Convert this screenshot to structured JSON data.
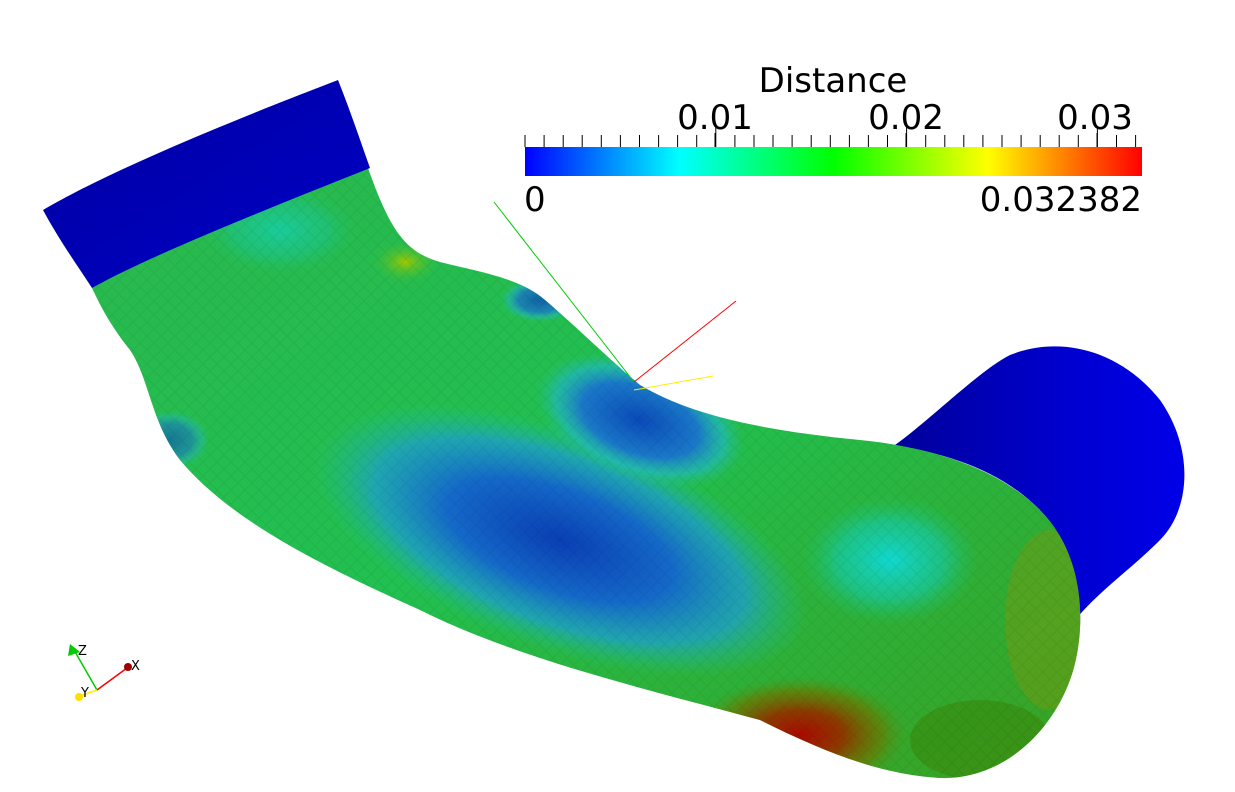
{
  "scalar_bar": {
    "title": "Distance",
    "ticks": [
      "0.01",
      "0.02",
      "0.03"
    ],
    "min_label": "0",
    "max_label": "0.032382",
    "colormap": [
      "#0000ff",
      "#00ffff",
      "#00ff00",
      "#ffff00",
      "#ff0000"
    ]
  },
  "orientation_axes": {
    "x_label": "X",
    "y_label": "Y",
    "z_label": "Z",
    "x_color": "#ff0000",
    "y_color": "#ffff00",
    "z_color": "#00cc00"
  },
  "colors": {
    "background": "#ffffff",
    "cap_blue": "#0000c8"
  }
}
